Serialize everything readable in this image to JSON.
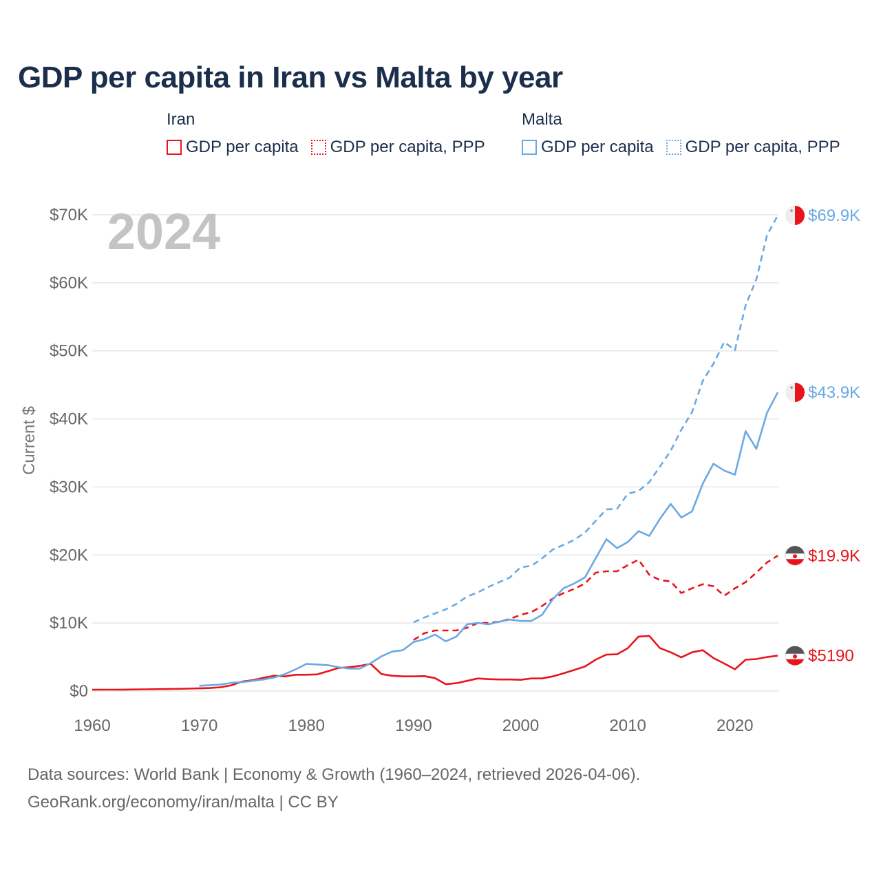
{
  "title": "GDP per capita in Iran vs Malta by year",
  "legend": {
    "groups": [
      {
        "label": "Iran",
        "color": "#e8141c",
        "items": [
          {
            "label": "GDP per capita",
            "style": "solid"
          },
          {
            "label": "GDP per capita, PPP",
            "style": "dotted"
          }
        ]
      },
      {
        "label": "Malta",
        "color": "#6aa9e4",
        "items": [
          {
            "label": "GDP per capita",
            "style": "solid"
          },
          {
            "label": "GDP per capita, PPP",
            "style": "dotted"
          }
        ]
      }
    ]
  },
  "footer": {
    "line1": "Data sources: World Bank | Economy & Growth (1960–2024, retrieved 2026-04-06).",
    "line2": "GeoRank.org/economy/iran/malta | CC BY"
  },
  "chart_data": {
    "type": "line",
    "year_label": "2024",
    "ylabel": "Current $",
    "xlim": [
      1960,
      2024
    ],
    "ylim": [
      0,
      70000
    ],
    "x_ticks": [
      1960,
      1970,
      1980,
      1990,
      2000,
      2010,
      2020
    ],
    "x_tick_labels": [
      "1960",
      "1970",
      "1980",
      "1990",
      "2000",
      "2010",
      "2020"
    ],
    "y_ticks": [
      0,
      10000,
      20000,
      30000,
      40000,
      50000,
      60000,
      70000
    ],
    "y_tick_labels": [
      "$0",
      "$10K",
      "$20K",
      "$30K",
      "$40K",
      "$50K",
      "$60K",
      "$70K"
    ],
    "series": [
      {
        "name": "Iran GDP per capita",
        "country": "Iran",
        "color": "#e8141c",
        "dash": "solid",
        "end_label": "$5190",
        "points": [
          [
            1960,
            190
          ],
          [
            1961,
            200
          ],
          [
            1962,
            205
          ],
          [
            1963,
            215
          ],
          [
            1964,
            230
          ],
          [
            1965,
            250
          ],
          [
            1966,
            270
          ],
          [
            1967,
            290
          ],
          [
            1968,
            320
          ],
          [
            1969,
            350
          ],
          [
            1970,
            390
          ],
          [
            1971,
            450
          ],
          [
            1972,
            560
          ],
          [
            1973,
            850
          ],
          [
            1974,
            1400
          ],
          [
            1975,
            1600
          ],
          [
            1976,
            1950
          ],
          [
            1977,
            2250
          ],
          [
            1978,
            2150
          ],
          [
            1979,
            2400
          ],
          [
            1980,
            2400
          ],
          [
            1981,
            2450
          ],
          [
            1982,
            2900
          ],
          [
            1983,
            3400
          ],
          [
            1984,
            3500
          ],
          [
            1985,
            3700
          ],
          [
            1986,
            4000
          ],
          [
            1987,
            2500
          ],
          [
            1988,
            2250
          ],
          [
            1989,
            2150
          ],
          [
            1990,
            2150
          ],
          [
            1991,
            2200
          ],
          [
            1992,
            1900
          ],
          [
            1993,
            1000
          ],
          [
            1994,
            1150
          ],
          [
            1995,
            1500
          ],
          [
            1996,
            1850
          ],
          [
            1997,
            1750
          ],
          [
            1998,
            1700
          ],
          [
            1999,
            1700
          ],
          [
            2000,
            1650
          ],
          [
            2001,
            1850
          ],
          [
            2002,
            1850
          ],
          [
            2003,
            2150
          ],
          [
            2004,
            2600
          ],
          [
            2005,
            3100
          ],
          [
            2006,
            3600
          ],
          [
            2007,
            4600
          ],
          [
            2008,
            5350
          ],
          [
            2009,
            5400
          ],
          [
            2010,
            6300
          ],
          [
            2011,
            8000
          ],
          [
            2012,
            8100
          ],
          [
            2013,
            6300
          ],
          [
            2014,
            5700
          ],
          [
            2015,
            4950
          ],
          [
            2016,
            5700
          ],
          [
            2017,
            6000
          ],
          [
            2018,
            4850
          ],
          [
            2019,
            4050
          ],
          [
            2020,
            3200
          ],
          [
            2021,
            4600
          ],
          [
            2022,
            4700
          ],
          [
            2023,
            5000
          ],
          [
            2024,
            5190
          ]
        ]
      },
      {
        "name": "Iran GDP per capita, PPP",
        "country": "Iran",
        "color": "#e8141c",
        "dash": "dashed",
        "end_label": "$19.9K",
        "points": [
          [
            1990,
            7500
          ],
          [
            1991,
            8500
          ],
          [
            1992,
            8900
          ],
          [
            1993,
            8900
          ],
          [
            1994,
            8900
          ],
          [
            1995,
            9300
          ],
          [
            1996,
            10000
          ],
          [
            1997,
            10000
          ],
          [
            1998,
            10200
          ],
          [
            1999,
            10600
          ],
          [
            2000,
            11200
          ],
          [
            2001,
            11600
          ],
          [
            2002,
            12500
          ],
          [
            2003,
            13600
          ],
          [
            2004,
            14400
          ],
          [
            2005,
            15000
          ],
          [
            2006,
            15800
          ],
          [
            2007,
            17400
          ],
          [
            2008,
            17600
          ],
          [
            2009,
            17600
          ],
          [
            2010,
            18500
          ],
          [
            2011,
            19300
          ],
          [
            2012,
            17100
          ],
          [
            2013,
            16300
          ],
          [
            2014,
            16100
          ],
          [
            2015,
            14400
          ],
          [
            2016,
            15100
          ],
          [
            2017,
            15700
          ],
          [
            2018,
            15400
          ],
          [
            2019,
            14000
          ],
          [
            2020,
            15100
          ],
          [
            2021,
            16000
          ],
          [
            2022,
            17400
          ],
          [
            2023,
            18900
          ],
          [
            2024,
            19900
          ]
        ]
      },
      {
        "name": "Malta GDP per capita",
        "country": "Malta",
        "color": "#6aa9e4",
        "dash": "solid",
        "end_label": "$43.9K",
        "points": [
          [
            1970,
            780
          ],
          [
            1971,
            850
          ],
          [
            1972,
            950
          ],
          [
            1973,
            1200
          ],
          [
            1974,
            1300
          ],
          [
            1975,
            1500
          ],
          [
            1976,
            1700
          ],
          [
            1977,
            2000
          ],
          [
            1978,
            2500
          ],
          [
            1979,
            3200
          ],
          [
            1980,
            4000
          ],
          [
            1981,
            3900
          ],
          [
            1982,
            3800
          ],
          [
            1983,
            3500
          ],
          [
            1984,
            3300
          ],
          [
            1985,
            3300
          ],
          [
            1986,
            4100
          ],
          [
            1987,
            5100
          ],
          [
            1988,
            5800
          ],
          [
            1989,
            6000
          ],
          [
            1990,
            7200
          ],
          [
            1991,
            7600
          ],
          [
            1992,
            8300
          ],
          [
            1993,
            7300
          ],
          [
            1994,
            8000
          ],
          [
            1995,
            9800
          ],
          [
            1996,
            10000
          ],
          [
            1997,
            9800
          ],
          [
            1998,
            10200
          ],
          [
            1999,
            10500
          ],
          [
            2000,
            10300
          ],
          [
            2001,
            10300
          ],
          [
            2002,
            11200
          ],
          [
            2003,
            13500
          ],
          [
            2004,
            15100
          ],
          [
            2005,
            15800
          ],
          [
            2006,
            16700
          ],
          [
            2007,
            19500
          ],
          [
            2008,
            22300
          ],
          [
            2009,
            21000
          ],
          [
            2010,
            21900
          ],
          [
            2011,
            23500
          ],
          [
            2012,
            22800
          ],
          [
            2013,
            25300
          ],
          [
            2014,
            27500
          ],
          [
            2015,
            25500
          ],
          [
            2016,
            26400
          ],
          [
            2017,
            30500
          ],
          [
            2018,
            33400
          ],
          [
            2019,
            32400
          ],
          [
            2020,
            31800
          ],
          [
            2021,
            38200
          ],
          [
            2022,
            35600
          ],
          [
            2023,
            40900
          ],
          [
            2024,
            43900
          ]
        ]
      },
      {
        "name": "Malta GDP per capita, PPP",
        "country": "Malta",
        "color": "#6aa9e4",
        "dash": "dashed",
        "end_label": "$69.9K",
        "points": [
          [
            1990,
            10100
          ],
          [
            1991,
            10800
          ],
          [
            1992,
            11400
          ],
          [
            1993,
            12000
          ],
          [
            1994,
            12800
          ],
          [
            1995,
            13900
          ],
          [
            1996,
            14500
          ],
          [
            1997,
            15300
          ],
          [
            1998,
            16000
          ],
          [
            1999,
            16700
          ],
          [
            2000,
            18200
          ],
          [
            2001,
            18400
          ],
          [
            2002,
            19500
          ],
          [
            2003,
            20800
          ],
          [
            2004,
            21500
          ],
          [
            2005,
            22200
          ],
          [
            2006,
            23300
          ],
          [
            2007,
            25000
          ],
          [
            2008,
            26700
          ],
          [
            2009,
            26800
          ],
          [
            2010,
            29000
          ],
          [
            2011,
            29400
          ],
          [
            2012,
            30700
          ],
          [
            2013,
            33000
          ],
          [
            2014,
            35300
          ],
          [
            2015,
            38400
          ],
          [
            2016,
            41000
          ],
          [
            2017,
            45600
          ],
          [
            2018,
            48100
          ],
          [
            2019,
            51300
          ],
          [
            2020,
            50100
          ],
          [
            2021,
            56700
          ],
          [
            2022,
            60500
          ],
          [
            2023,
            67000
          ],
          [
            2024,
            69900
          ]
        ]
      }
    ]
  }
}
